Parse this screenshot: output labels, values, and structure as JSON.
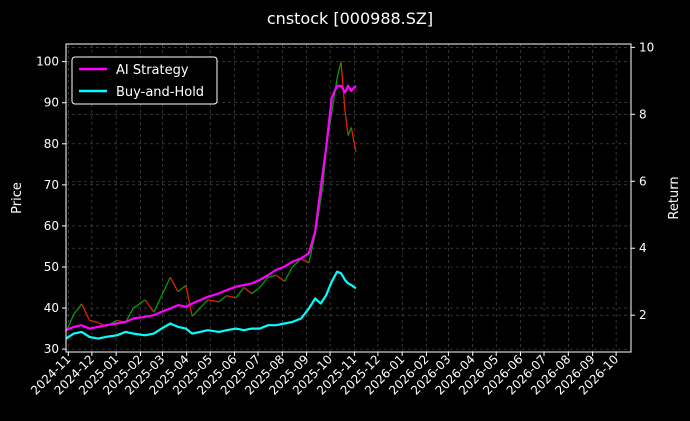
{
  "chart_data": {
    "type": "line",
    "title": "cnstock [000988.SZ]",
    "ylabel_left": "Price",
    "ylabel_right": "Return",
    "grid": true,
    "legend_position": "top-left",
    "xlim": [
      "2024-10-29",
      "2026-10-20"
    ],
    "ylim_left": [
      29.3,
      104.3
    ],
    "ylim_right": [
      0.9,
      10.1
    ],
    "x_ticks": [
      "2024-11",
      "2024-12",
      "2025-01",
      "2025-02",
      "2025-03",
      "2025-04",
      "2025-05",
      "2025-06",
      "2025-07",
      "2025-08",
      "2025-09",
      "2025-10",
      "2025-11",
      "2025-12",
      "2026-01",
      "2026-02",
      "2026-03",
      "2026-04",
      "2026-05",
      "2026-06",
      "2026-07",
      "2026-08",
      "2026-09",
      "2026-10"
    ],
    "y_ticks_left": [
      30,
      40,
      50,
      60,
      70,
      80,
      90,
      100
    ],
    "y_ticks_right": [
      2,
      4,
      6,
      8,
      10
    ],
    "colors": {
      "up": "#00a000",
      "down": "#e02000",
      "ai_strategy": "#ff00ff",
      "buy_and_hold": "#00ffff",
      "background": "#000000",
      "grid": "#555555"
    },
    "price_series": {
      "name": "",
      "x": [
        "2024-10-31",
        "2024-11-08",
        "2024-11-18",
        "2024-11-28",
        "2024-12-09",
        "2024-12-19",
        "2025-01-02",
        "2025-01-13",
        "2025-01-23",
        "2025-02-07",
        "2025-02-18",
        "2025-02-28",
        "2025-03-11",
        "2025-03-21",
        "2025-03-31",
        "2025-04-08",
        "2025-04-18",
        "2025-04-28",
        "2025-05-12",
        "2025-05-22",
        "2025-06-03",
        "2025-06-13",
        "2025-06-23",
        "2025-07-03",
        "2025-07-14",
        "2025-07-24",
        "2025-08-04",
        "2025-08-14",
        "2025-08-25",
        "2025-09-04",
        "2025-09-12",
        "2025-09-22",
        "2025-09-26",
        "2025-10-10",
        "2025-10-15",
        "2025-10-20",
        "2025-10-24",
        "2025-10-28",
        "2025-11-03"
      ],
      "close": [
        35.0,
        38.5,
        41.0,
        37.0,
        36.5,
        35.5,
        37.0,
        36.5,
        40.0,
        42.0,
        39.0,
        43.0,
        47.5,
        44.0,
        45.5,
        38.0,
        40.0,
        42.0,
        41.5,
        43.0,
        42.5,
        45.0,
        43.5,
        45.0,
        47.5,
        48.0,
        46.5,
        50.0,
        52.0,
        51.0,
        58.0,
        70.0,
        79.0,
        96.0,
        100.0,
        88.0,
        82.0,
        84.0,
        78.0
      ]
    },
    "series": [
      {
        "name": "AI Strategy",
        "x": [
          "2024-10-29",
          "2024-11-08",
          "2024-11-18",
          "2024-11-28",
          "2024-12-09",
          "2024-12-19",
          "2025-01-02",
          "2025-01-13",
          "2025-01-23",
          "2025-02-07",
          "2025-02-18",
          "2025-02-28",
          "2025-03-11",
          "2025-03-21",
          "2025-03-31",
          "2025-04-08",
          "2025-04-18",
          "2025-04-28",
          "2025-05-12",
          "2025-05-22",
          "2025-06-03",
          "2025-06-13",
          "2025-06-23",
          "2025-07-03",
          "2025-07-14",
          "2025-07-24",
          "2025-08-04",
          "2025-08-14",
          "2025-08-25",
          "2025-09-04",
          "2025-09-12",
          "2025-09-19",
          "2025-09-26",
          "2025-10-03",
          "2025-10-10",
          "2025-10-15",
          "2025-10-20",
          "2025-10-24",
          "2025-10-28",
          "2025-11-03"
        ],
        "values": [
          1.55,
          1.65,
          1.7,
          1.6,
          1.65,
          1.7,
          1.75,
          1.8,
          1.9,
          1.95,
          2.0,
          2.1,
          2.2,
          2.3,
          2.25,
          2.35,
          2.45,
          2.55,
          2.65,
          2.75,
          2.85,
          2.9,
          2.95,
          3.05,
          3.2,
          3.35,
          3.45,
          3.6,
          3.7,
          3.85,
          4.5,
          5.8,
          7.0,
          8.5,
          8.85,
          8.85,
          8.65,
          8.85,
          8.7,
          8.85
        ]
      },
      {
        "name": "Buy-and-Hold",
        "x": [
          "2024-10-29",
          "2024-11-08",
          "2024-11-18",
          "2024-11-28",
          "2024-12-09",
          "2024-12-19",
          "2025-01-02",
          "2025-01-13",
          "2025-01-23",
          "2025-02-07",
          "2025-02-18",
          "2025-02-28",
          "2025-03-11",
          "2025-03-21",
          "2025-03-31",
          "2025-04-08",
          "2025-04-18",
          "2025-04-28",
          "2025-05-12",
          "2025-05-22",
          "2025-06-03",
          "2025-06-13",
          "2025-06-23",
          "2025-07-03",
          "2025-07-14",
          "2025-07-24",
          "2025-08-04",
          "2025-08-14",
          "2025-08-25",
          "2025-09-04",
          "2025-09-12",
          "2025-09-19",
          "2025-09-26",
          "2025-10-03",
          "2025-10-10",
          "2025-10-15",
          "2025-10-20",
          "2025-10-24",
          "2025-10-28",
          "2025-11-03"
        ],
        "values": [
          1.3,
          1.45,
          1.5,
          1.35,
          1.3,
          1.35,
          1.4,
          1.5,
          1.45,
          1.4,
          1.45,
          1.6,
          1.75,
          1.65,
          1.6,
          1.45,
          1.5,
          1.55,
          1.5,
          1.55,
          1.6,
          1.55,
          1.6,
          1.6,
          1.7,
          1.7,
          1.75,
          1.8,
          1.9,
          2.2,
          2.5,
          2.35,
          2.6,
          3.0,
          3.3,
          3.25,
          3.05,
          2.95,
          2.9,
          2.8
        ]
      }
    ]
  }
}
